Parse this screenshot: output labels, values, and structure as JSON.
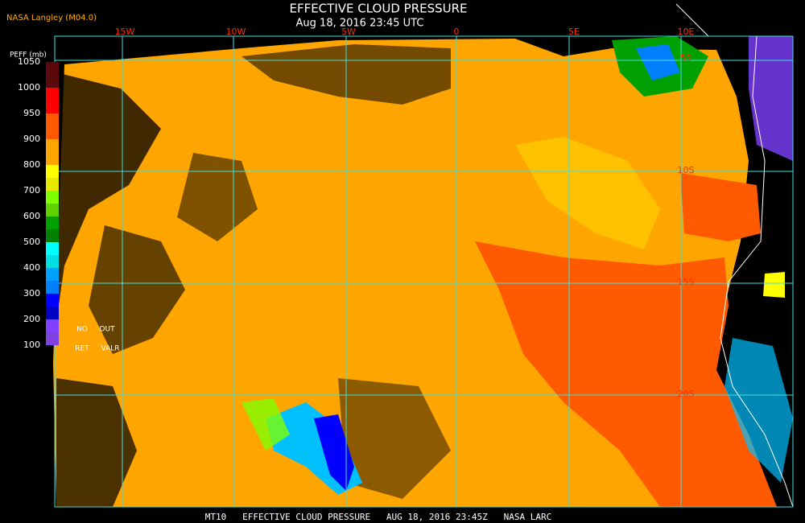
{
  "header": {
    "source": "NASA Langley (M04.0)",
    "title": "EFFECTIVE CLOUD PRESSURE",
    "subtitle": "Aug 18, 2016 23:45 UTC"
  },
  "colorbar": {
    "label": "PEFF (mb)",
    "ticks": [
      1050,
      1000,
      950,
      900,
      800,
      700,
      600,
      500,
      400,
      300,
      200,
      100
    ],
    "notes": [
      "NO",
      "OUT",
      "RET",
      "VALR"
    ]
  },
  "map": {
    "longitude_labels": [
      "15W",
      "10W",
      "5W",
      "0",
      "5E",
      "10E"
    ],
    "latitude_labels": [
      "5S",
      "10S",
      "15S",
      "20S"
    ]
  },
  "footer": "MT10   EFFECTIVE CLOUD PRESSURE   AUG 18, 2016 23:45Z   NASA LARC"
}
